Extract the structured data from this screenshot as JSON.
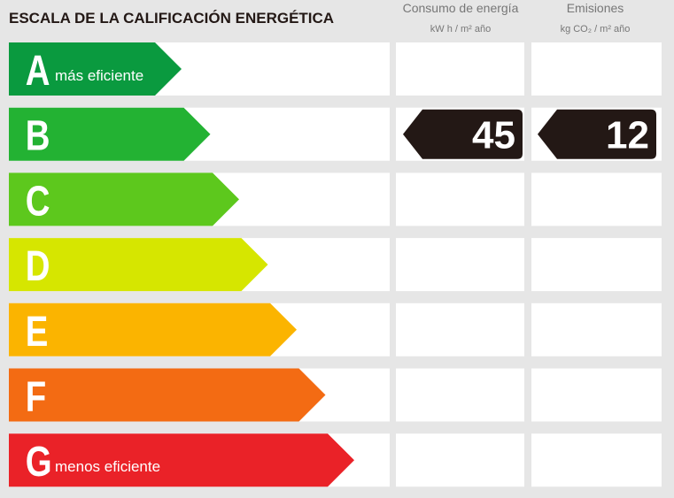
{
  "header": {
    "title": "ESCALA DE LA CALIFICACIÓN ENERGÉTICA",
    "columns": [
      {
        "title": "Consumo de energía",
        "unit": "kW h / m² año"
      },
      {
        "title": "Emisiones",
        "unit": "kg CO₂ / m² año"
      }
    ]
  },
  "rows": [
    {
      "letter": "A",
      "note": "más eficiente",
      "color": "#0a9a3f"
    },
    {
      "letter": "B",
      "color": "#23b233",
      "consumption": 45,
      "emissions": 12
    },
    {
      "letter": "C",
      "color": "#5dc81d"
    },
    {
      "letter": "D",
      "color": "#d6e600"
    },
    {
      "letter": "E",
      "color": "#fbb400"
    },
    {
      "letter": "F",
      "color": "#f36b13"
    },
    {
      "letter": "G",
      "note": "menos eficiente",
      "color": "#ea2228"
    }
  ]
}
